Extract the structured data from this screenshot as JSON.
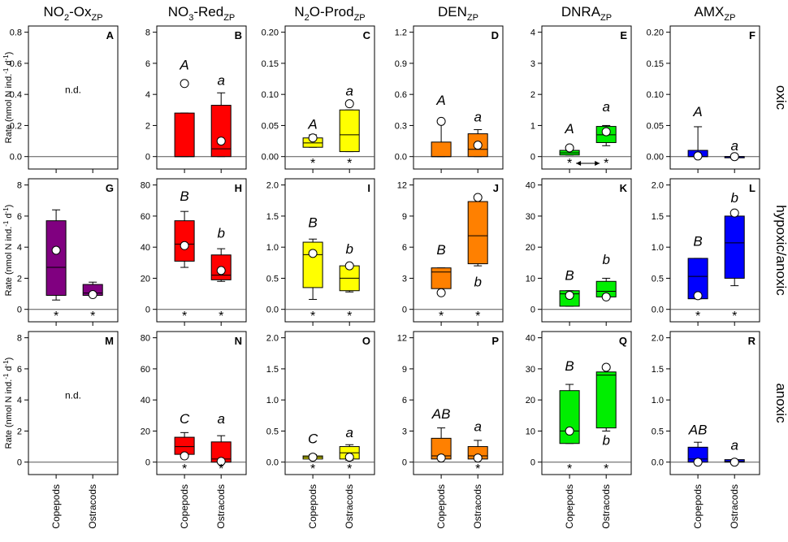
{
  "colors": {
    "NO2": "#800080",
    "NO3": "#ff0000",
    "N2O": "#ffff00",
    "DEN": "#ff8000",
    "DNRA": "#00ee00",
    "AMX": "#0000ff",
    "mean_marker": "#ffffff",
    "axis": "#000000"
  },
  "chart_data": {
    "type": "box",
    "columns": [
      {
        "key": "NO2",
        "title_main": "NO",
        "title_sub2": "2",
        "title_rest": "-Ox",
        "title_subscript": "ZP"
      },
      {
        "key": "NO3",
        "title_main": "NO",
        "title_sub2": "3",
        "title_rest": "-Red",
        "title_subscript": "ZP"
      },
      {
        "key": "N2O",
        "title_main": "N",
        "title_sub2": "2",
        "title_rest": "O-Prod",
        "title_subscript": "ZP"
      },
      {
        "key": "DEN",
        "title_main": "DEN",
        "title_sub2": "",
        "title_rest": "",
        "title_subscript": "ZP"
      },
      {
        "key": "DNRA",
        "title_main": "DNRA",
        "title_sub2": "",
        "title_rest": "",
        "title_subscript": "ZP"
      },
      {
        "key": "AMX",
        "title_main": "AMX",
        "title_sub2": "",
        "title_rest": "",
        "title_subscript": "ZP"
      }
    ],
    "rows": [
      {
        "key": "oxic",
        "label": "oxic"
      },
      {
        "key": "hypoxic",
        "label": "hypoxic/anoxic"
      },
      {
        "key": "anoxic",
        "label": "anoxic"
      }
    ],
    "ylabel": "Rate (nmol N ind.⁻¹ d⁻¹)",
    "ylabel_main": "Rate (nmol N ind.",
    "ylabel_mid": " d",
    "ylabel_end": ")",
    "ylabel_sup": "-1",
    "categories": [
      "Copepods",
      "Ostracods"
    ],
    "nd_label": "n.d.",
    "star": "*",
    "panels": [
      {
        "id": "A",
        "row": 0,
        "col": 0,
        "ylim": [
          -0.08,
          0.84
        ],
        "ticks": [
          "0.0",
          "0.2",
          "0.4",
          "0.6",
          "0.8"
        ],
        "tick_values": [
          0,
          0.2,
          0.4,
          0.6,
          0.8
        ],
        "nd": true,
        "boxes": [],
        "stars": [
          false,
          false
        ]
      },
      {
        "id": "B",
        "row": 0,
        "col": 1,
        "ylim": [
          -0.8,
          8.4
        ],
        "ticks": [
          "0",
          "2",
          "4",
          "6",
          "8"
        ],
        "tick_values": [
          0,
          2,
          4,
          6,
          8
        ],
        "nd": false,
        "stars": [
          false,
          false
        ],
        "boxes": [
          {
            "cat": 0,
            "q1": 0,
            "median": 0,
            "q3": 2.8,
            "wlo": 0,
            "whi": 2.8,
            "mean": 4.7,
            "letter": "A",
            "letter_y": 5.6,
            "italic": true
          },
          {
            "cat": 1,
            "q1": 0,
            "median": 0.5,
            "q3": 3.3,
            "wlo": 0,
            "whi": 4.1,
            "mean": 1.0,
            "letter": "a",
            "letter_y": 4.6,
            "italic": true
          }
        ]
      },
      {
        "id": "C",
        "row": 0,
        "col": 2,
        "ylim": [
          -0.02,
          0.21
        ],
        "ticks": [
          "0.00",
          "0.05",
          "0.10",
          "0.15",
          "0.20"
        ],
        "tick_values": [
          0,
          0.05,
          0.1,
          0.15,
          0.2
        ],
        "nd": false,
        "stars": [
          true,
          true
        ],
        "boxes": [
          {
            "cat": 0,
            "q1": 0.015,
            "median": 0.022,
            "q3": 0.03,
            "wlo": 0.015,
            "whi": 0.035,
            "mean": 0.03,
            "letter": "A",
            "letter_y": 0.045,
            "italic": true
          },
          {
            "cat": 1,
            "q1": 0.008,
            "median": 0.035,
            "q3": 0.075,
            "wlo": 0.008,
            "whi": 0.075,
            "mean": 0.085,
            "letter": "a",
            "letter_y": 0.098,
            "italic": true
          }
        ]
      },
      {
        "id": "D",
        "row": 0,
        "col": 3,
        "ylim": [
          -0.12,
          1.26
        ],
        "ticks": [
          "0.0",
          "0.3",
          "0.6",
          "0.9",
          "1.2"
        ],
        "tick_values": [
          0,
          0.3,
          0.6,
          0.9,
          1.2
        ],
        "nd": false,
        "stars": [
          false,
          false
        ],
        "boxes": [
          {
            "cat": 0,
            "q1": 0,
            "median": 0,
            "q3": 0.14,
            "wlo": 0,
            "whi": 0.34,
            "mean": 0.34,
            "letter": "A",
            "letter_y": 0.5,
            "italic": true
          },
          {
            "cat": 1,
            "q1": 0,
            "median": 0.07,
            "q3": 0.22,
            "wlo": 0,
            "whi": 0.26,
            "mean": 0.11,
            "letter": "a",
            "letter_y": 0.34,
            "italic": true
          }
        ]
      },
      {
        "id": "E",
        "row": 0,
        "col": 4,
        "ylim": [
          -0.4,
          4.2
        ],
        "ticks": [
          "0",
          "1",
          "2",
          "3",
          "4"
        ],
        "tick_values": [
          0,
          1,
          2,
          3,
          4
        ],
        "nd": false,
        "stars": [
          true,
          true
        ],
        "arrow": true,
        "boxes": [
          {
            "cat": 0,
            "q1": 0.05,
            "median": 0.12,
            "q3": 0.2,
            "wlo": 0.05,
            "whi": 0.25,
            "mean": 0.28,
            "letter": "A",
            "letter_y": 0.75,
            "italic": true
          },
          {
            "cat": 1,
            "q1": 0.45,
            "median": 0.7,
            "q3": 0.97,
            "wlo": 0.35,
            "whi": 1.0,
            "mean": 0.8,
            "letter": "a",
            "letter_y": 1.45,
            "italic": true
          }
        ]
      },
      {
        "id": "F",
        "row": 0,
        "col": 5,
        "ylim": [
          -0.02,
          0.21
        ],
        "ticks": [
          "0.00",
          "0.05",
          "0.10",
          "0.15",
          "0.20"
        ],
        "tick_values": [
          0,
          0.05,
          0.1,
          0.15,
          0.2
        ],
        "nd": false,
        "stars": [
          false,
          false
        ],
        "boxes": [
          {
            "cat": 0,
            "q1": 0,
            "median": 0,
            "q3": 0.01,
            "wlo": 0,
            "whi": 0.048,
            "mean": 0.001,
            "letter": "A",
            "letter_y": 0.065,
            "italic": true
          },
          {
            "cat": 1,
            "q1": 0,
            "median": 0,
            "q3": 0,
            "wlo": 0,
            "whi": 0,
            "mean": 0.0,
            "letter": "a",
            "letter_y": 0.01,
            "italic": true
          }
        ]
      },
      {
        "id": "G",
        "row": 1,
        "col": 0,
        "ylim": [
          -0.8,
          8.4
        ],
        "ticks": [
          "0",
          "2",
          "4",
          "6",
          "8"
        ],
        "tick_values": [
          0,
          2,
          4,
          6,
          8
        ],
        "nd": false,
        "stars": [
          true,
          true
        ],
        "boxes": [
          {
            "cat": 0,
            "q1": 0.9,
            "median": 2.7,
            "q3": 5.7,
            "wlo": 0.6,
            "whi": 6.4,
            "mean": 3.8,
            "letter": "",
            "letter_y": 0,
            "italic": true
          },
          {
            "cat": 1,
            "q1": 0.9,
            "median": 1.05,
            "q3": 1.6,
            "wlo": 0.9,
            "whi": 1.75,
            "mean": 0.95,
            "letter": "",
            "letter_y": 0,
            "italic": true
          }
        ]
      },
      {
        "id": "H",
        "row": 1,
        "col": 1,
        "ylim": [
          -8,
          84
        ],
        "ticks": [
          "0",
          "20",
          "40",
          "60",
          "80"
        ],
        "tick_values": [
          0,
          20,
          40,
          60,
          80
        ],
        "nd": false,
        "stars": [
          true,
          true
        ],
        "boxes": [
          {
            "cat": 0,
            "q1": 31,
            "median": 42,
            "q3": 57,
            "wlo": 27,
            "whi": 63,
            "mean": 41,
            "letter": "B",
            "letter_y": 70,
            "italic": true
          },
          {
            "cat": 1,
            "q1": 19,
            "median": 22,
            "q3": 35,
            "wlo": 18,
            "whi": 39,
            "mean": 25,
            "letter": "b",
            "letter_y": 46,
            "italic": true
          }
        ]
      },
      {
        "id": "I",
        "row": 1,
        "col": 2,
        "ylim": [
          -0.2,
          2.1
        ],
        "ticks": [
          "0.0",
          "0.5",
          "1.0",
          "1.5",
          "2.0"
        ],
        "tick_values": [
          0,
          0.5,
          1.0,
          1.5,
          2.0
        ],
        "nd": false,
        "stars": [
          true,
          true
        ],
        "boxes": [
          {
            "cat": 0,
            "q1": 0.35,
            "median": 0.88,
            "q3": 1.08,
            "wlo": 0.16,
            "whi": 1.13,
            "mean": 0.9,
            "letter": "B",
            "letter_y": 1.32,
            "italic": true
          },
          {
            "cat": 1,
            "q1": 0.3,
            "median": 0.5,
            "q3": 0.7,
            "wlo": 0.28,
            "whi": 0.72,
            "mean": 0.7,
            "letter": "b",
            "letter_y": 0.9,
            "italic": true
          }
        ]
      },
      {
        "id": "J",
        "row": 1,
        "col": 3,
        "ylim": [
          -1.2,
          12.6
        ],
        "ticks": [
          "0",
          "3",
          "6",
          "9",
          "12"
        ],
        "tick_values": [
          0,
          3,
          6,
          9,
          12
        ],
        "nd": false,
        "stars": [
          true,
          true
        ],
        "boxes": [
          {
            "cat": 0,
            "q1": 2.0,
            "median": 3.6,
            "q3": 4.0,
            "wlo": 1.6,
            "whi": 4.0,
            "mean": 1.6,
            "letter": "B",
            "letter_y": 5.3,
            "italic": true
          },
          {
            "cat": 1,
            "q1": 4.4,
            "median": 7.1,
            "q3": 10.4,
            "wlo": 4.2,
            "whi": 10.8,
            "mean": 10.8,
            "letter": "b",
            "letter_y": 2.2,
            "italic": true
          }
        ]
      },
      {
        "id": "K",
        "row": 1,
        "col": 4,
        "ylim": [
          -4,
          42
        ],
        "ticks": [
          "0",
          "10",
          "20",
          "30",
          "40"
        ],
        "tick_values": [
          0,
          10,
          20,
          30,
          40
        ],
        "nd": false,
        "stars": [
          false,
          false
        ],
        "boxes": [
          {
            "cat": 0,
            "q1": 1.0,
            "median": 5.0,
            "q3": 6.0,
            "wlo": 1.0,
            "whi": 6.0,
            "mean": 4.5,
            "letter": "B",
            "letter_y": 9.5,
            "italic": true
          },
          {
            "cat": 1,
            "q1": 4.0,
            "median": 5.8,
            "q3": 9.0,
            "wlo": 4.0,
            "whi": 10.0,
            "mean": 4.0,
            "letter": "b",
            "letter_y": 14.5,
            "italic": true
          }
        ]
      },
      {
        "id": "L",
        "row": 1,
        "col": 5,
        "ylim": [
          -0.2,
          2.1
        ],
        "ticks": [
          "0.0",
          "0.5",
          "1.0",
          "1.5",
          "2.0"
        ],
        "tick_values": [
          0,
          0.5,
          1.0,
          1.5,
          2.0
        ],
        "nd": false,
        "stars": [
          true,
          true
        ],
        "boxes": [
          {
            "cat": 0,
            "q1": 0.17,
            "median": 0.53,
            "q3": 0.82,
            "wlo": 0.17,
            "whi": 0.82,
            "mean": 0.22,
            "letter": "B",
            "letter_y": 1.02,
            "italic": true
          },
          {
            "cat": 1,
            "q1": 0.5,
            "median": 1.07,
            "q3": 1.5,
            "wlo": 0.38,
            "whi": 1.55,
            "mean": 1.55,
            "letter": "b",
            "letter_y": 1.72,
            "italic": true
          }
        ]
      },
      {
        "id": "M",
        "row": 2,
        "col": 0,
        "ylim": [
          -0.8,
          8.4
        ],
        "ticks": [
          "0",
          "2",
          "4",
          "6",
          "8"
        ],
        "tick_values": [
          0,
          2,
          4,
          6,
          8
        ],
        "nd": true,
        "boxes": [],
        "stars": [
          false,
          false
        ]
      },
      {
        "id": "N",
        "row": 2,
        "col": 1,
        "ylim": [
          -8,
          84
        ],
        "ticks": [
          "0",
          "20",
          "40",
          "60",
          "80"
        ],
        "tick_values": [
          0,
          20,
          40,
          60,
          80
        ],
        "nd": false,
        "stars": [
          true,
          true
        ],
        "boxes": [
          {
            "cat": 0,
            "q1": 5,
            "median": 10,
            "q3": 16,
            "wlo": 4,
            "whi": 19,
            "mean": 4,
            "letter": "C",
            "letter_y": 25,
            "italic": true
          },
          {
            "cat": 1,
            "q1": 0,
            "median": 2,
            "q3": 13,
            "wlo": 0,
            "whi": 17,
            "mean": 0.5,
            "letter": "a",
            "letter_y": 25,
            "italic": true
          }
        ]
      },
      {
        "id": "O",
        "row": 2,
        "col": 2,
        "ylim": [
          -0.2,
          2.1
        ],
        "ticks": [
          "0.0",
          "0.5",
          "1.0",
          "1.5",
          "2.0"
        ],
        "tick_values": [
          0,
          0.5,
          1.0,
          1.5,
          2.0
        ],
        "nd": false,
        "stars": [
          true,
          true
        ],
        "boxes": [
          {
            "cat": 0,
            "q1": 0.05,
            "median": 0.08,
            "q3": 0.1,
            "wlo": 0.05,
            "whi": 0.12,
            "mean": 0.08,
            "letter": "C",
            "letter_y": 0.3,
            "italic": true
          },
          {
            "cat": 1,
            "q1": 0.05,
            "median": 0.15,
            "q3": 0.25,
            "wlo": 0.03,
            "whi": 0.28,
            "mean": 0.08,
            "letter": "a",
            "letter_y": 0.4,
            "italic": true
          }
        ]
      },
      {
        "id": "P",
        "row": 2,
        "col": 3,
        "ylim": [
          -1.2,
          12.6
        ],
        "ticks": [
          "0",
          "3",
          "6",
          "9",
          "12"
        ],
        "tick_values": [
          0,
          3,
          6,
          9,
          12
        ],
        "nd": false,
        "stars": [
          false,
          true
        ],
        "boxes": [
          {
            "cat": 0,
            "q1": 0.3,
            "median": 0.6,
            "q3": 2.3,
            "wlo": 0.3,
            "whi": 3.3,
            "mean": 0.4,
            "letter": "AB",
            "letter_y": 4.2,
            "italic": true
          },
          {
            "cat": 1,
            "q1": 0.3,
            "median": 0.6,
            "q3": 1.5,
            "wlo": 0.3,
            "whi": 2.1,
            "mean": 0.4,
            "letter": "a",
            "letter_y": 3.0,
            "italic": true
          }
        ]
      },
      {
        "id": "Q",
        "row": 2,
        "col": 4,
        "ylim": [
          -4,
          42
        ],
        "ticks": [
          "0",
          "10",
          "20",
          "30",
          "40"
        ],
        "tick_values": [
          0,
          10,
          20,
          30,
          40
        ],
        "nd": false,
        "stars": [
          true,
          true
        ],
        "boxes": [
          {
            "cat": 0,
            "q1": 6,
            "median": 10,
            "q3": 23,
            "wlo": 6,
            "whi": 25,
            "mean": 10,
            "letter": "B",
            "letter_y": 29.5,
            "italic": true
          },
          {
            "cat": 1,
            "q1": 11,
            "median": 28,
            "q3": 29,
            "wlo": 10,
            "whi": 30,
            "mean": 30.5,
            "letter": "b",
            "letter_y": 5.5,
            "italic": true
          }
        ]
      },
      {
        "id": "R",
        "row": 2,
        "col": 5,
        "ylim": [
          -0.2,
          2.1
        ],
        "ticks": [
          "0.0",
          "0.5",
          "1.0",
          "1.5",
          "2.0"
        ],
        "tick_values": [
          0,
          0.5,
          1.0,
          1.5,
          2.0
        ],
        "nd": false,
        "stars": [
          false,
          false
        ],
        "boxes": [
          {
            "cat": 0,
            "q1": 0,
            "median": 0.05,
            "q3": 0.24,
            "wlo": 0,
            "whi": 0.32,
            "mean": 0.0,
            "letter": "AB",
            "letter_y": 0.45,
            "italic": true
          },
          {
            "cat": 1,
            "q1": 0,
            "median": 0.01,
            "q3": 0.04,
            "wlo": 0,
            "whi": 0.04,
            "mean": 0.0,
            "letter": "a",
            "letter_y": 0.2,
            "italic": true
          }
        ]
      }
    ]
  }
}
